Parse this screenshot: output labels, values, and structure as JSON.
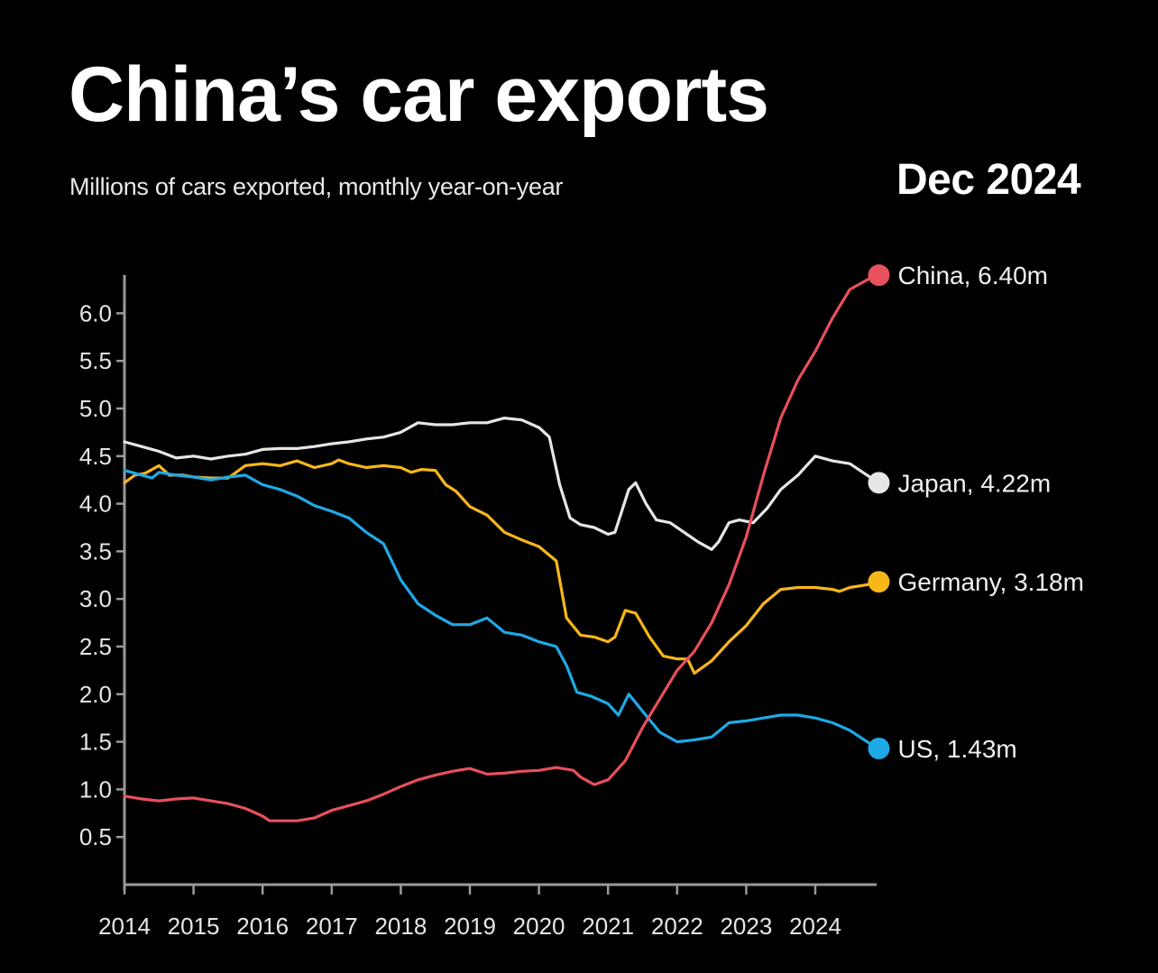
{
  "header": {
    "title": "China’s car exports",
    "subtitle": "Millions of cars exported, monthly year-on-year",
    "date": "Dec 2024"
  },
  "chart_data": {
    "type": "line",
    "title": "China’s car exports",
    "subtitle": "Millions of cars exported, monthly year-on-year",
    "xlabel": "",
    "ylabel": "Millions of cars",
    "xlim": [
      2014,
      2024.92
    ],
    "ylim": [
      0,
      6.3
    ],
    "grid": false,
    "legend": "end-labels-right",
    "x_ticks": [
      "2014",
      "2015",
      "2016",
      "2017",
      "2018",
      "2019",
      "2020",
      "2021",
      "2022",
      "2023",
      "2024"
    ],
    "y_ticks": [
      "0.5",
      "1.0",
      "1.5",
      "2.0",
      "2.5",
      "3.0",
      "3.5",
      "4.0",
      "4.5",
      "5.0",
      "5.5",
      "6.0"
    ],
    "series": [
      {
        "name": "China",
        "color": "#e8505b",
        "end_label": "China, 6.40m",
        "points": [
          [
            2014.0,
            0.93
          ],
          [
            2014.25,
            0.9
          ],
          [
            2014.5,
            0.88
          ],
          [
            2014.75,
            0.9
          ],
          [
            2015.0,
            0.91
          ],
          [
            2015.25,
            0.88
          ],
          [
            2015.5,
            0.85
          ],
          [
            2015.75,
            0.8
          ],
          [
            2016.0,
            0.72
          ],
          [
            2016.1,
            0.67
          ],
          [
            2016.5,
            0.67
          ],
          [
            2016.75,
            0.7
          ],
          [
            2017.0,
            0.78
          ],
          [
            2017.25,
            0.83
          ],
          [
            2017.5,
            0.88
          ],
          [
            2017.75,
            0.95
          ],
          [
            2018.0,
            1.03
          ],
          [
            2018.25,
            1.1
          ],
          [
            2018.5,
            1.15
          ],
          [
            2018.75,
            1.19
          ],
          [
            2019.0,
            1.22
          ],
          [
            2019.25,
            1.16
          ],
          [
            2019.5,
            1.17
          ],
          [
            2019.75,
            1.19
          ],
          [
            2020.0,
            1.2
          ],
          [
            2020.25,
            1.23
          ],
          [
            2020.5,
            1.2
          ],
          [
            2020.6,
            1.13
          ],
          [
            2020.8,
            1.05
          ],
          [
            2021.0,
            1.1
          ],
          [
            2021.25,
            1.3
          ],
          [
            2021.5,
            1.65
          ],
          [
            2021.75,
            1.95
          ],
          [
            2022.0,
            2.25
          ],
          [
            2022.25,
            2.45
          ],
          [
            2022.5,
            2.75
          ],
          [
            2022.75,
            3.15
          ],
          [
            2023.0,
            3.65
          ],
          [
            2023.25,
            4.3
          ],
          [
            2023.5,
            4.9
          ],
          [
            2023.75,
            5.3
          ],
          [
            2024.0,
            5.6
          ],
          [
            2024.25,
            5.95
          ],
          [
            2024.5,
            6.25
          ],
          [
            2024.75,
            6.35
          ],
          [
            2024.92,
            6.4
          ]
        ]
      },
      {
        "name": "Japan",
        "color": "#e6e6e6",
        "end_label": "Japan, 4.22m",
        "points": [
          [
            2014.0,
            4.65
          ],
          [
            2014.25,
            4.6
          ],
          [
            2014.5,
            4.55
          ],
          [
            2014.75,
            4.48
          ],
          [
            2015.0,
            4.5
          ],
          [
            2015.25,
            4.47
          ],
          [
            2015.5,
            4.5
          ],
          [
            2015.75,
            4.52
          ],
          [
            2016.0,
            4.57
          ],
          [
            2016.25,
            4.58
          ],
          [
            2016.5,
            4.58
          ],
          [
            2016.75,
            4.6
          ],
          [
            2017.0,
            4.63
          ],
          [
            2017.25,
            4.65
          ],
          [
            2017.5,
            4.68
          ],
          [
            2017.75,
            4.7
          ],
          [
            2018.0,
            4.75
          ],
          [
            2018.25,
            4.85
          ],
          [
            2018.5,
            4.83
          ],
          [
            2018.75,
            4.83
          ],
          [
            2019.0,
            4.85
          ],
          [
            2019.25,
            4.85
          ],
          [
            2019.5,
            4.9
          ],
          [
            2019.75,
            4.88
          ],
          [
            2020.0,
            4.8
          ],
          [
            2020.15,
            4.7
          ],
          [
            2020.3,
            4.2
          ],
          [
            2020.45,
            3.85
          ],
          [
            2020.6,
            3.78
          ],
          [
            2020.8,
            3.75
          ],
          [
            2021.0,
            3.68
          ],
          [
            2021.1,
            3.7
          ],
          [
            2021.3,
            4.15
          ],
          [
            2021.4,
            4.22
          ],
          [
            2021.55,
            4.0
          ],
          [
            2021.7,
            3.83
          ],
          [
            2021.9,
            3.8
          ],
          [
            2022.1,
            3.7
          ],
          [
            2022.3,
            3.6
          ],
          [
            2022.5,
            3.52
          ],
          [
            2022.6,
            3.6
          ],
          [
            2022.75,
            3.8
          ],
          [
            2022.9,
            3.83
          ],
          [
            2023.1,
            3.8
          ],
          [
            2023.3,
            3.95
          ],
          [
            2023.5,
            4.15
          ],
          [
            2023.75,
            4.3
          ],
          [
            2024.0,
            4.5
          ],
          [
            2024.25,
            4.45
          ],
          [
            2024.5,
            4.42
          ],
          [
            2024.75,
            4.3
          ],
          [
            2024.92,
            4.22
          ]
        ]
      },
      {
        "name": "Germany",
        "color": "#f7b718",
        "end_label": "Germany, 3.18m",
        "points": [
          [
            2014.0,
            4.22
          ],
          [
            2014.15,
            4.3
          ],
          [
            2014.3,
            4.32
          ],
          [
            2014.5,
            4.4
          ],
          [
            2014.65,
            4.3
          ],
          [
            2014.85,
            4.3
          ],
          [
            2015.0,
            4.28
          ],
          [
            2015.25,
            4.27
          ],
          [
            2015.5,
            4.27
          ],
          [
            2015.75,
            4.4
          ],
          [
            2016.0,
            4.42
          ],
          [
            2016.25,
            4.4
          ],
          [
            2016.5,
            4.45
          ],
          [
            2016.75,
            4.38
          ],
          [
            2017.0,
            4.42
          ],
          [
            2017.1,
            4.46
          ],
          [
            2017.25,
            4.42
          ],
          [
            2017.5,
            4.38
          ],
          [
            2017.75,
            4.4
          ],
          [
            2018.0,
            4.38
          ],
          [
            2018.15,
            4.33
          ],
          [
            2018.3,
            4.36
          ],
          [
            2018.5,
            4.35
          ],
          [
            2018.65,
            4.2
          ],
          [
            2018.8,
            4.13
          ],
          [
            2019.0,
            3.97
          ],
          [
            2019.25,
            3.88
          ],
          [
            2019.5,
            3.7
          ],
          [
            2019.75,
            3.62
          ],
          [
            2020.0,
            3.55
          ],
          [
            2020.25,
            3.4
          ],
          [
            2020.4,
            2.8
          ],
          [
            2020.6,
            2.62
          ],
          [
            2020.8,
            2.6
          ],
          [
            2021.0,
            2.55
          ],
          [
            2021.1,
            2.6
          ],
          [
            2021.25,
            2.88
          ],
          [
            2021.4,
            2.85
          ],
          [
            2021.6,
            2.6
          ],
          [
            2021.8,
            2.4
          ],
          [
            2022.0,
            2.37
          ],
          [
            2022.15,
            2.37
          ],
          [
            2022.25,
            2.22
          ],
          [
            2022.5,
            2.35
          ],
          [
            2022.75,
            2.55
          ],
          [
            2023.0,
            2.72
          ],
          [
            2023.25,
            2.95
          ],
          [
            2023.5,
            3.1
          ],
          [
            2023.75,
            3.12
          ],
          [
            2024.0,
            3.12
          ],
          [
            2024.25,
            3.1
          ],
          [
            2024.35,
            3.08
          ],
          [
            2024.5,
            3.12
          ],
          [
            2024.75,
            3.15
          ],
          [
            2024.92,
            3.18
          ]
        ]
      },
      {
        "name": "US",
        "color": "#1fa9e6",
        "end_label": "US, 1.43m",
        "points": [
          [
            2014.0,
            4.35
          ],
          [
            2014.25,
            4.3
          ],
          [
            2014.4,
            4.27
          ],
          [
            2014.5,
            4.33
          ],
          [
            2014.75,
            4.3
          ],
          [
            2015.0,
            4.28
          ],
          [
            2015.25,
            4.25
          ],
          [
            2015.5,
            4.28
          ],
          [
            2015.75,
            4.3
          ],
          [
            2016.0,
            4.2
          ],
          [
            2016.25,
            4.15
          ],
          [
            2016.5,
            4.08
          ],
          [
            2016.75,
            3.98
          ],
          [
            2017.0,
            3.92
          ],
          [
            2017.25,
            3.85
          ],
          [
            2017.5,
            3.7
          ],
          [
            2017.75,
            3.58
          ],
          [
            2018.0,
            3.2
          ],
          [
            2018.25,
            2.95
          ],
          [
            2018.5,
            2.83
          ],
          [
            2018.75,
            2.73
          ],
          [
            2019.0,
            2.73
          ],
          [
            2019.25,
            2.8
          ],
          [
            2019.5,
            2.65
          ],
          [
            2019.75,
            2.62
          ],
          [
            2020.0,
            2.55
          ],
          [
            2020.25,
            2.5
          ],
          [
            2020.4,
            2.3
          ],
          [
            2020.55,
            2.02
          ],
          [
            2020.75,
            1.98
          ],
          [
            2021.0,
            1.9
          ],
          [
            2021.15,
            1.78
          ],
          [
            2021.3,
            2.0
          ],
          [
            2021.5,
            1.82
          ],
          [
            2021.75,
            1.6
          ],
          [
            2022.0,
            1.5
          ],
          [
            2022.25,
            1.52
          ],
          [
            2022.5,
            1.55
          ],
          [
            2022.75,
            1.7
          ],
          [
            2023.0,
            1.72
          ],
          [
            2023.25,
            1.75
          ],
          [
            2023.5,
            1.78
          ],
          [
            2023.75,
            1.78
          ],
          [
            2024.0,
            1.75
          ],
          [
            2024.25,
            1.7
          ],
          [
            2024.5,
            1.62
          ],
          [
            2024.75,
            1.5
          ],
          [
            2024.92,
            1.43
          ]
        ]
      }
    ]
  }
}
